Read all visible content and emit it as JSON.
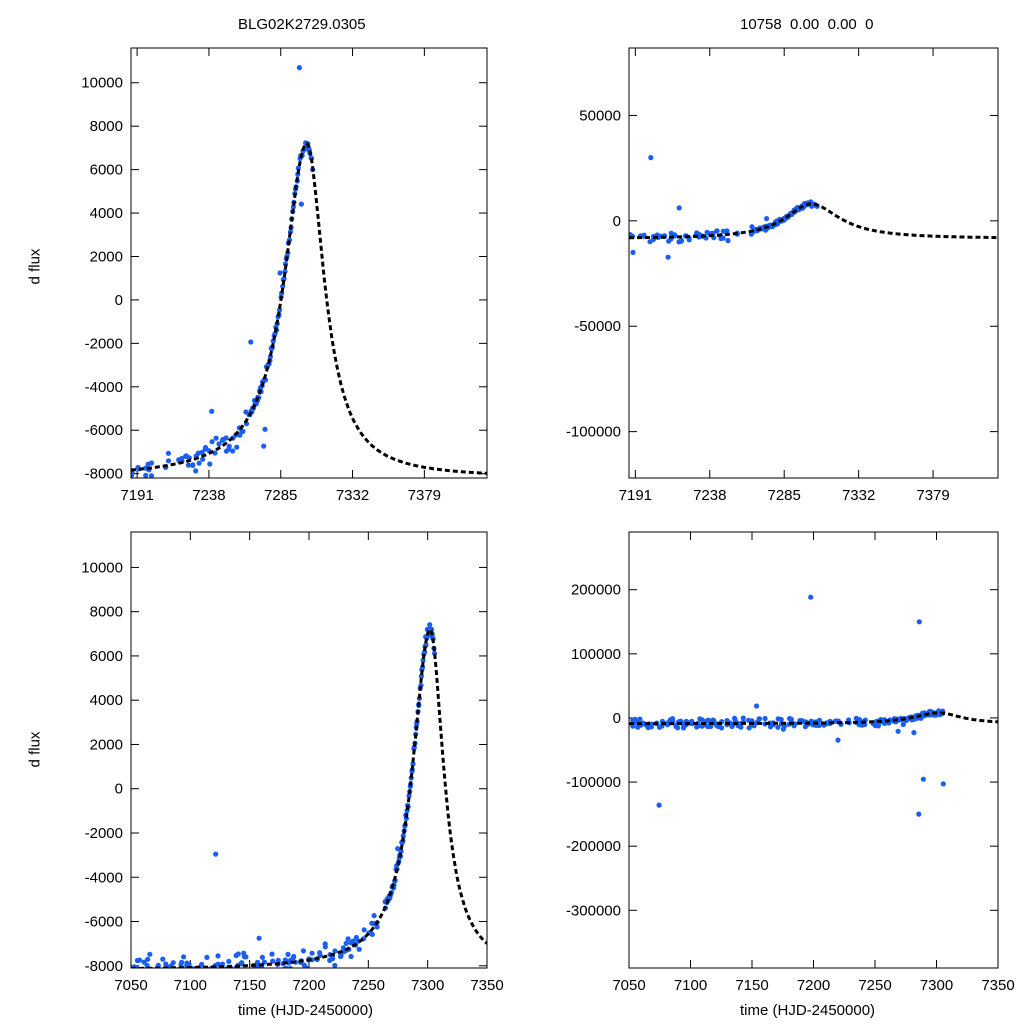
{
  "header": {
    "left_title": "BLG02K2729.0305",
    "right_title": "10758  0.00  0.00  0"
  },
  "labels": {
    "ylabel_top": "d flux",
    "ylabel_bottom": "d flux",
    "xlabel_left": "time (HJD-2450000)",
    "xlabel_right": "time (HJD-2450000)"
  },
  "colors": {
    "points": "#1a5ff0",
    "model": "#000000"
  },
  "chart_data": [
    {
      "id": "top-left",
      "type": "scatter",
      "xlim": [
        7187,
        7420
      ],
      "ylim": [
        -8200,
        11600
      ],
      "xticks": [
        7191,
        7238,
        7285,
        7332,
        7379
      ],
      "yticks": [
        -8000,
        -6000,
        -4000,
        -2000,
        0,
        2000,
        4000,
        6000,
        8000,
        10000
      ],
      "model": {
        "t0": 7302,
        "peak": 7200,
        "base": -8200,
        "rise_tau": 18,
        "fall_tau": 14
      }
    },
    {
      "id": "top-right",
      "type": "scatter",
      "xlim": [
        7187,
        7420
      ],
      "ylim": [
        -122000,
        82000
      ],
      "xticks": [
        7191,
        7238,
        7285,
        7332,
        7379
      ],
      "yticks": [
        -100000,
        -50000,
        0,
        50000
      ],
      "model": {
        "t0": 7302,
        "peak": 8000,
        "base": -8500,
        "rise_tau": 20,
        "fall_tau": 22
      }
    },
    {
      "id": "bottom-left",
      "type": "scatter",
      "xlim": [
        7050,
        7350
      ],
      "ylim": [
        -8100,
        11600
      ],
      "xticks": [
        7050,
        7100,
        7150,
        7200,
        7250,
        7300,
        7350
      ],
      "yticks": [
        -8000,
        -6000,
        -4000,
        -2000,
        0,
        2000,
        4000,
        6000,
        8000,
        10000
      ],
      "model": {
        "t0": 7302,
        "peak": 7200,
        "base": -8200,
        "rise_tau": 18,
        "fall_tau": 14
      }
    },
    {
      "id": "bottom-right",
      "type": "scatter",
      "xlim": [
        7050,
        7350
      ],
      "ylim": [
        -390000,
        290000
      ],
      "xticks": [
        7050,
        7100,
        7150,
        7200,
        7250,
        7300,
        7350
      ],
      "yticks": [
        -300000,
        -200000,
        -100000,
        0,
        100000,
        200000
      ],
      "model": {
        "t0": 7302,
        "peak": 8000,
        "base": -9000,
        "rise_tau": 25,
        "fall_tau": 22
      }
    }
  ]
}
